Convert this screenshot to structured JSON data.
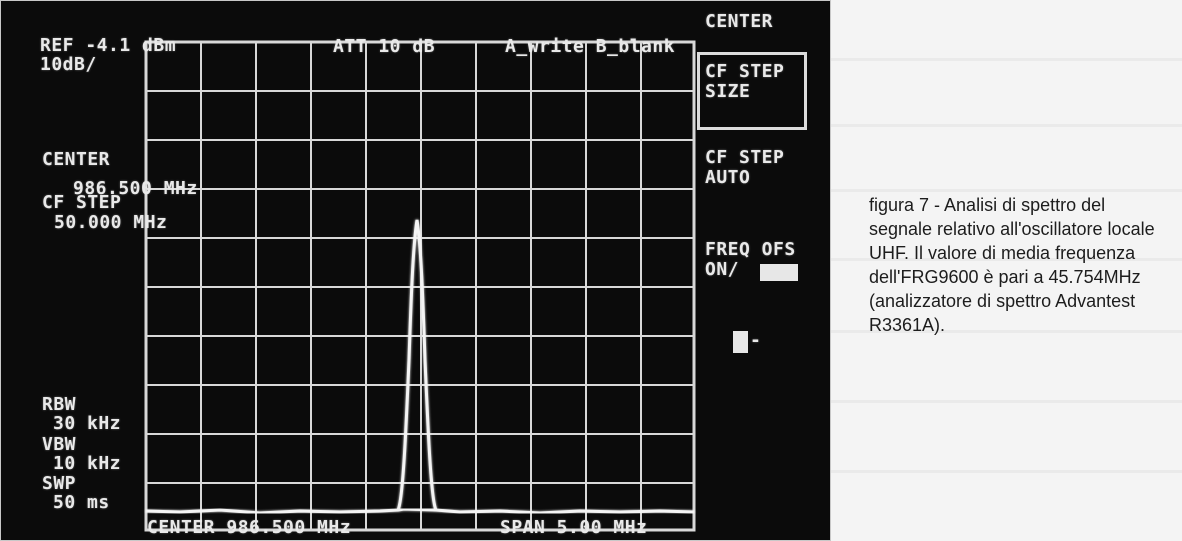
{
  "screen": {
    "ref_level": "REF -4.1 dBm",
    "scale": "10dB/",
    "attenuation": "ATT 10 dB",
    "trace_mode": "A_write B_blank",
    "center_label": "CENTER",
    "center_value": "986.500 MHz",
    "cf_step_label": "CF STEP",
    "cf_step_value": "50.000 MHz",
    "rbw_label": "RBW",
    "rbw_value": "30 kHz",
    "vbw_label": "VBW",
    "vbw_value": "10 kHz",
    "swp_label": "SWP",
    "swp_value": "50 ms",
    "bottom_center": "CENTER 986.500 MHz",
    "bottom_span": "SPAN 5.00 MHz"
  },
  "softkeys": {
    "title": "CENTER",
    "cf_step_size": "CF STEP\nSIZE",
    "cf_step_auto": "CF STEP\nAUTO",
    "freq_ofs": "FREQ OFS\nON/",
    "arrow_key": "-"
  },
  "caption": {
    "text": "figura 7 - Analisi di spettro del segnale relativo all'oscillatore locale UHF. Il valore di media frequenza dell'FRG9600 è pari a 45.754MHz (analizzatore di spettro Advantest R3361A)."
  },
  "colors": {
    "screen_bg": "#0b0b0b",
    "screen_text": "#e9e9e9",
    "graticule": "#d8d8d8",
    "trace": "#f4f4f4",
    "page_bg": "#f4f4f4"
  }
}
